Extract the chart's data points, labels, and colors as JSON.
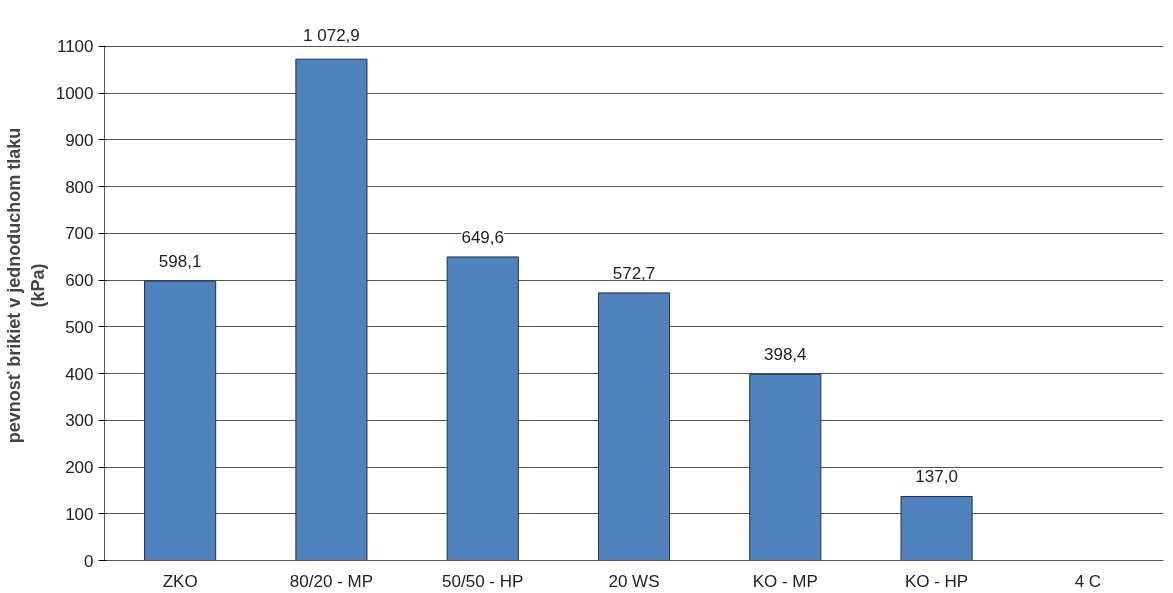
{
  "chart_data": {
    "type": "bar",
    "ylabel": "pevnosť brikiet v jednoduchom tlaku\n(kPa)",
    "categories": [
      "ZKO",
      "80/20 - MP",
      "50/50 - HP",
      "20 WS",
      "KO - MP",
      "KO - HP",
      "4 C"
    ],
    "values": [
      598.1,
      1072.9,
      649.6,
      572.7,
      398.4,
      137.0,
      null
    ],
    "value_labels": [
      "598,1",
      "1 072,9",
      "649,6",
      "572,7",
      "398,4",
      "137,0",
      null
    ],
    "color": "#4f81bd",
    "ylim": [
      0,
      1100
    ],
    "yticks": [
      0,
      100,
      200,
      300,
      400,
      500,
      600,
      700,
      800,
      900,
      1000,
      1100
    ],
    "grid": "y"
  }
}
